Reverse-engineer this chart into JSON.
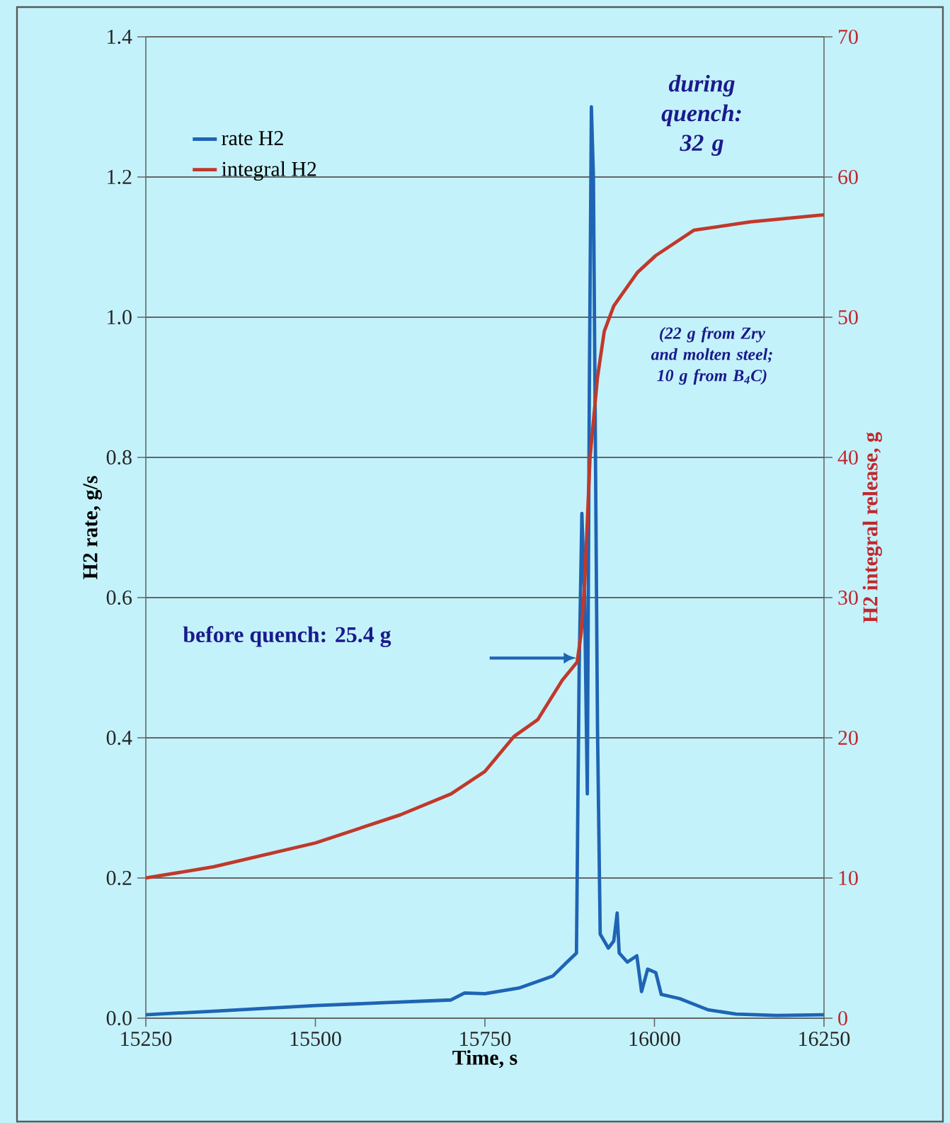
{
  "chart_data": {
    "type": "line",
    "xlabel": "Time, s",
    "ylabel": "H2 rate, g/s",
    "y2label": "H2 integral release, g",
    "xlim": [
      15250,
      16250
    ],
    "xticks": [
      15250,
      15500,
      15750,
      16000,
      16250
    ],
    "ylim": [
      0,
      1.4
    ],
    "yticks": [
      {
        "value": 0,
        "label": "0.0"
      },
      0.2,
      0.4,
      0.6,
      0.8,
      {
        "value": 1,
        "label": "1.0"
      },
      1.2,
      1.4
    ],
    "y2lim": [
      0,
      70
    ],
    "y2ticks": [
      0,
      10,
      20,
      30,
      40,
      50,
      60,
      70
    ],
    "grid": "y",
    "legend": "top left",
    "series": [
      {
        "name": "rate H2",
        "color": "#1f64b4",
        "x": [
          15250,
          15350,
          15500,
          15600,
          15700,
          15720,
          15750,
          15800,
          15850,
          15870,
          15885,
          15889,
          15893,
          15897,
          15901,
          15904,
          15907,
          15910,
          15916,
          15920,
          15932,
          15940,
          15945,
          15948,
          15960,
          15974,
          15981,
          15990,
          16002,
          16010,
          16037,
          16079,
          16120,
          16180,
          16250
        ],
        "values": [
          0.005,
          0.01,
          0.018,
          0.022,
          0.026,
          0.036,
          0.035,
          0.043,
          0.06,
          0.079,
          0.093,
          0.5,
          0.72,
          0.6,
          0.32,
          0.9,
          1.3,
          1.2,
          0.416,
          0.12,
          0.1,
          0.11,
          0.15,
          0.093,
          0.08,
          0.089,
          0.038,
          0.07,
          0.065,
          0.034,
          0.028,
          0.012,
          0.006,
          0.004,
          0.005
        ]
      },
      {
        "name": "integral H2",
        "color": "#c0392b",
        "axis": "y2",
        "x": [
          15250,
          15350,
          15500,
          15625,
          15700,
          15750,
          15793,
          15828,
          15864,
          15886,
          15892,
          15897,
          15905,
          15916,
          15926,
          15940,
          15953,
          15975,
          16002,
          16058,
          16141,
          16250
        ],
        "values": [
          10,
          10.8,
          12.5,
          14.5,
          16,
          17.6,
          20.1,
          21.3,
          24.1,
          25.4,
          27.5,
          30.9,
          40,
          45.7,
          49,
          50.8,
          51.7,
          53.2,
          54.4,
          56.2,
          56.8,
          57.3
        ]
      }
    ],
    "annotations": [
      "before quench: 25.4 g",
      "during quench: 32 g",
      "(22 g from Zry and molten steel; 10 g from B$_{4}$C)"
    ]
  }
}
